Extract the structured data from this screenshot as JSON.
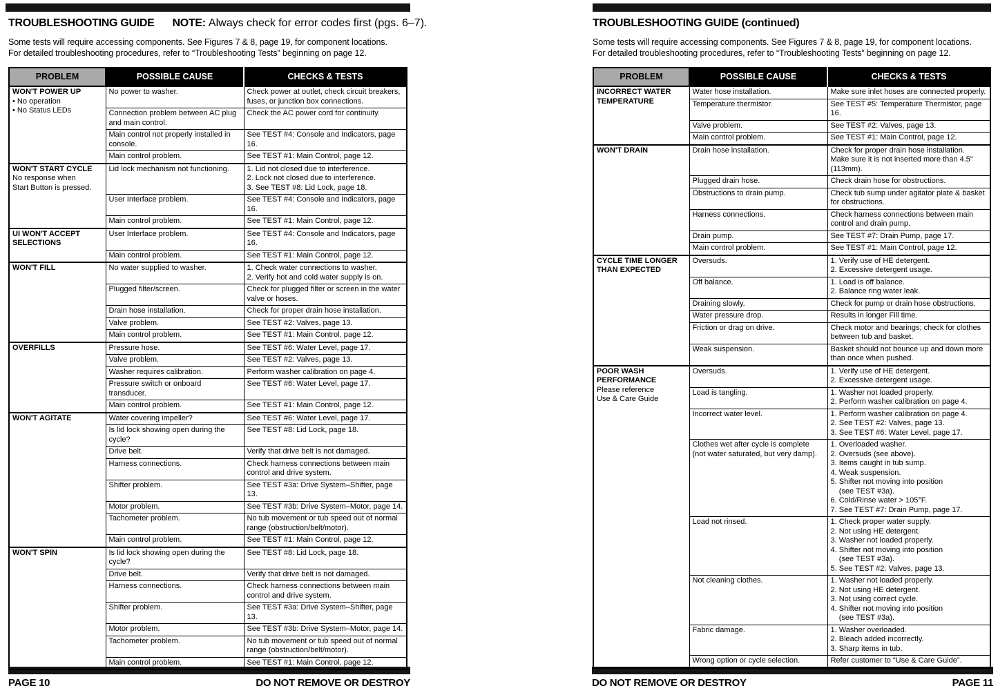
{
  "colors": {
    "header_gray": "#a9a9a9",
    "bar_black": "#151515"
  },
  "page_left": {
    "title": "TROUBLESHOOTING GUIDE",
    "note_label": "NOTE:",
    "note_text": "Always check for error codes first (pgs. 6–7).",
    "intro": "Some tests will require accessing components. See Figures 7 & 8, page 19, for component locations.\nFor detailed troubleshooting procedures, refer to “Troubleshooting Tests” beginning on page 12.",
    "footer_left": "PAGE 10",
    "footer_right": "DO NOT REMOVE OR DESTROY",
    "table": {
      "headers": [
        "PROBLEM",
        "POSSIBLE CAUSE",
        "CHECKS & TESTS"
      ],
      "sections": [
        {
          "problem": "WON'T POWER UP",
          "notes": [
            "• No operation",
            "• No Status LEDs"
          ],
          "rows": [
            {
              "cause": "No power to washer.",
              "checks": "Check power at outlet, check circuit breakers, fuses, or junction box connections."
            },
            {
              "cause": "Connection problem between AC plug and main control.",
              "checks": "Check the AC power cord for continuity."
            },
            {
              "cause": "Main control not properly installed in console.",
              "checks": "See TEST #4: Console and Indicators, page 16."
            },
            {
              "cause": "Main control problem.",
              "checks": "See TEST #1: Main Control, page 12."
            }
          ]
        },
        {
          "problem": "WON'T START CYCLE",
          "notes": [
            "No response when",
            "Start Button is pressed."
          ],
          "rows": [
            {
              "cause": "Lid lock mechanism not functioning.",
              "checks": "1. Lid not closed due to interference.\n2. Lock not closed due to interference.\n3. See TEST #8: Lid Lock, page 18."
            },
            {
              "cause": "User Interface problem.",
              "checks": "See TEST #4: Console and Indicators, page 16."
            },
            {
              "cause": "Main control problem.",
              "checks": "See TEST #1: Main Control, page 12."
            }
          ]
        },
        {
          "problem": "UI WON'T ACCEPT SELECTIONS",
          "notes": [],
          "rows": [
            {
              "cause": "User Interface problem.",
              "checks": "See TEST #4: Console and Indicators, page 16."
            },
            {
              "cause": "Main control problem.",
              "checks": "See TEST #1: Main Control, page 12."
            }
          ]
        },
        {
          "problem": "WON'T FILL",
          "notes": [],
          "rows": [
            {
              "cause": "No water supplied to washer.",
              "checks": "1. Check water connections to washer.\n2. Verify hot and cold water supply is on."
            },
            {
              "cause": "Plugged filter/screen.",
              "checks": "Check for plugged filter or screen in the water valve or hoses."
            },
            {
              "cause": "Drain hose installation.",
              "checks": "Check for proper drain hose installation."
            },
            {
              "cause": "Valve problem.",
              "checks": "See TEST #2: Valves, page 13."
            },
            {
              "cause": "Main control problem.",
              "checks": "See TEST #1: Main Control, page 12."
            }
          ]
        },
        {
          "problem": "OVERFILLS",
          "notes": [],
          "rows": [
            {
              "cause": "Pressure hose.",
              "checks": "See TEST #6: Water Level, page 17."
            },
            {
              "cause": "Valve problem.",
              "checks": "See TEST #2: Valves, page 13."
            },
            {
              "cause": "Washer requires calibration.",
              "checks": "Perform washer calibration on page 4."
            },
            {
              "cause": "Pressure switch or onboard transducer.",
              "checks": "See TEST #6: Water Level, page 17."
            },
            {
              "cause": "Main control problem.",
              "checks": "See TEST #1: Main Control, page 12."
            }
          ]
        },
        {
          "problem": "WON'T AGITATE",
          "notes": [],
          "rows": [
            {
              "cause": "Water covering impeller?",
              "checks": "See TEST #6: Water Level, page 17."
            },
            {
              "cause": "Is lid lock showing open during the cycle?",
              "checks": "See TEST #8: Lid Lock, page 18."
            },
            {
              "cause": "Drive belt.",
              "checks": "Verify that drive belt is not damaged."
            },
            {
              "cause": "Harness connections.",
              "checks": "Check harness connections between main control and drive system."
            },
            {
              "cause": "Shifter problem.",
              "checks": "See TEST #3a: Drive System–Shifter, page 13."
            },
            {
              "cause": "Motor problem.",
              "checks": "See TEST #3b: Drive System–Motor, page 14."
            },
            {
              "cause": "Tachometer problem.",
              "checks": "No tub movement or tub speed out of normal range (obstruction/belt/motor)."
            },
            {
              "cause": "Main control problem.",
              "checks": "See TEST #1: Main Control, page 12."
            }
          ]
        },
        {
          "problem": "WON'T SPIN",
          "notes": [],
          "rows": [
            {
              "cause": "Is lid lock showing open during the cycle?",
              "checks": "See TEST #8: Lid Lock, page 18."
            },
            {
              "cause": "Drive belt.",
              "checks": "Verify that drive belt is not damaged."
            },
            {
              "cause": "Harness connections.",
              "checks": "Check harness connections between main control and drive system."
            },
            {
              "cause": "Shifter problem.",
              "checks": "See TEST #3a: Drive System–Shifter, page 13."
            },
            {
              "cause": "Motor problem.",
              "checks": "See TEST #3b: Drive System–Motor, page 14."
            },
            {
              "cause": "Tachometer problem.",
              "checks": "No tub movement or tub speed out of normal range (obstruction/belt/motor)."
            },
            {
              "cause": "Main control problem.",
              "checks": "See TEST #1: Main Control, page 12."
            }
          ]
        }
      ]
    }
  },
  "page_right": {
    "title": "TROUBLESHOOTING GUIDE (continued)",
    "intro": "Some tests will require accessing components. See Figures 7 & 8, page 19, for component locations.\nFor detailed troubleshooting procedures, refer to “Troubleshooting Tests” beginning on page 12.",
    "footer_left": "DO NOT REMOVE OR DESTROY",
    "footer_right": "PAGE 11",
    "table": {
      "headers": [
        "PROBLEM",
        "POSSIBLE CAUSE",
        "CHECKS & TESTS"
      ],
      "sections": [
        {
          "problem": "INCORRECT WATER TEMPERATURE",
          "notes": [],
          "rows": [
            {
              "cause": "Water hose installation.",
              "checks": "Make sure inlet hoses are connected properly."
            },
            {
              "cause": "Temperature thermistor.",
              "checks": "See TEST #5: Temperature Thermistor, page 16."
            },
            {
              "cause": "Valve problem.",
              "checks": "See TEST #2: Valves, page 13."
            },
            {
              "cause": "Main control problem.",
              "checks": "See TEST #1: Main Control, page 12."
            }
          ]
        },
        {
          "problem": "WON'T DRAIN",
          "notes": [],
          "rows": [
            {
              "cause": "Drain hose installation.",
              "checks": "Check for proper drain hose installation.\nMake sure it is not inserted more than 4.5\" (113mm)."
            },
            {
              "cause": "Plugged drain hose.",
              "checks": "Check drain hose for obstructions."
            },
            {
              "cause": "Obstructions to drain pump.",
              "checks": "Check tub sump under agitator plate & basket for obstructions."
            },
            {
              "cause": "Harness connections.",
              "checks": "Check harness connections between main control and drain pump."
            },
            {
              "cause": "Drain pump.",
              "checks": "See TEST #7: Drain Pump, page 17."
            },
            {
              "cause": "Main control problem.",
              "checks": "See TEST #1: Main Control, page 12."
            }
          ]
        },
        {
          "problem": "CYCLE TIME LONGER THAN EXPECTED",
          "notes": [],
          "rows": [
            {
              "cause": "Oversuds.",
              "checks": "1. Verify use of HE detergent.\n2. Excessive detergent usage."
            },
            {
              "cause": "Off balance.",
              "checks": "1. Load is off balance.\n2. Balance ring water leak."
            },
            {
              "cause": "Draining slowly.",
              "checks": "Check for pump or drain hose obstructions."
            },
            {
              "cause": "Water pressure drop.",
              "checks": "Results in longer Fill time."
            },
            {
              "cause": "Friction or drag on drive.",
              "checks": "Check motor and bearings; check for clothes between tub and basket."
            },
            {
              "cause": "Weak suspension.",
              "checks": "Basket should not bounce up and down more than once when pushed."
            }
          ]
        },
        {
          "problem": "POOR WASH PERFORMANCE",
          "notes": [
            "Please reference",
            "Use & Care Guide"
          ],
          "rows": [
            {
              "cause": "Oversuds.",
              "checks": "1. Verify use of HE detergent.\n2. Excessive detergent usage."
            },
            {
              "cause": "Load is tangling.",
              "checks": "1. Washer not loaded properly.\n2. Perform washer calibration on page 4."
            },
            {
              "cause": "Incorrect water level.",
              "checks": "1. Perform washer calibration on page 4.\n2. See TEST #2: Valves, page 13.\n3. See TEST #6: Water Level, page 17."
            },
            {
              "cause": "Clothes wet after cycle is complete\n(not water saturated, but very damp).",
              "checks": "1. Overloaded washer.\n2. Oversuds (see above).\n3. Items caught in tub sump.\n4. Weak suspension.\n5. Shifter not moving into position\n    (see TEST #3a).\n6. Cold/Rinse water > 105°F.\n7. See TEST #7: Drain Pump, page 17."
            },
            {
              "cause": "Load not rinsed.",
              "checks": "1. Check proper water supply.\n2. Not using HE detergent.\n3. Washer not loaded properly.\n4. Shifter not moving into position\n    (see TEST #3a).\n5. See TEST #2: Valves, page 13."
            },
            {
              "cause": "Not cleaning clothes.",
              "checks": "1. Washer not loaded properly.\n2. Not using HE detergent.\n3. Not using correct cycle.\n4. Shifter not moving into position\n    (see TEST #3a)."
            },
            {
              "cause": "Fabric damage.",
              "checks": "1. Washer overloaded.\n2. Bleach added incorrectly.\n3. Sharp items in tub."
            },
            {
              "cause": "Wrong option or cycle selection.",
              "checks": "Refer customer to “Use & Care Guide”."
            }
          ]
        }
      ]
    }
  }
}
